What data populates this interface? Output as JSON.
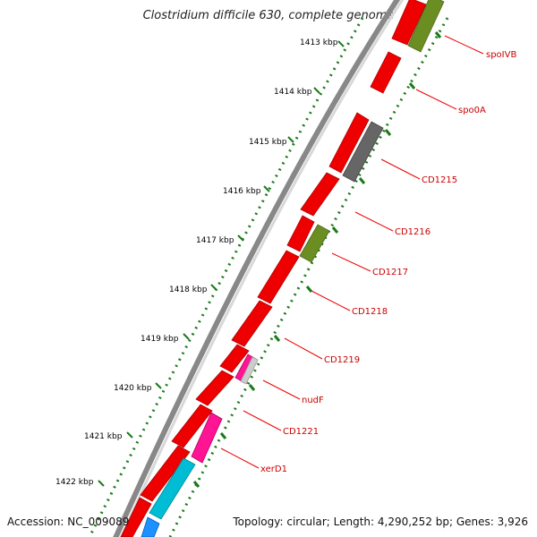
{
  "title": "Clostridium difficile 630, complete genome",
  "footer": {
    "accession": "Accession: NC_009089",
    "summary": "Topology: circular; Length: 4,290,252 bp; Genes: 3,926"
  },
  "scale": {
    "kbp_labels": [
      "1413 kbp",
      "1414 kbp",
      "1415 kbp",
      "1416 kbp",
      "1417 kbp",
      "1418 kbp",
      "1419 kbp",
      "1420 kbp",
      "1421 kbp",
      "1422 kbp"
    ]
  },
  "genes": {
    "labels": [
      "spoIVB",
      "spo0A",
      "CD1215",
      "CD1216",
      "CD1217",
      "CD1218",
      "CD1219",
      "nudF",
      "CD1221",
      "xerD1"
    ]
  },
  "colors": {
    "cds": "#ee0000",
    "olive": "#6b8e23",
    "gray": "#666666",
    "magenta": "#ff1493",
    "cyan": "#00bcd4",
    "blue": "#1e90ff",
    "label": "#cc0000",
    "dots": "#1a7a1a"
  }
}
